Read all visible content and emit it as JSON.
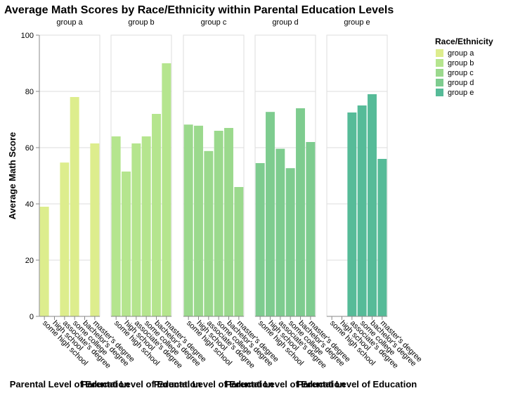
{
  "chart_data": {
    "type": "bar",
    "title": "Average Math Scores by Race/Ethnicity within Parental Education Levels",
    "ylabel": "Average Math Score",
    "xlabel": "Parental Level of Education",
    "ylim": [
      0,
      100
    ],
    "yticks": [
      0,
      20,
      40,
      60,
      80,
      100
    ],
    "grid": true,
    "categories": [
      "some high school",
      "high school",
      "associate's degree",
      "some college",
      "bachelor's degree",
      "master's degree"
    ],
    "facets": [
      {
        "name": "group a",
        "values": [
          39,
          null,
          54.7,
          78,
          null,
          61.5
        ]
      },
      {
        "name": "group b",
        "values": [
          64,
          51.5,
          61.5,
          64,
          72,
          90
        ]
      },
      {
        "name": "group c",
        "values": [
          68.2,
          67.8,
          58.8,
          66,
          67,
          46
        ]
      },
      {
        "name": "group d",
        "values": [
          54.5,
          72.7,
          59.6,
          52.7,
          74,
          62
        ]
      },
      {
        "name": "group e",
        "values": [
          null,
          null,
          72.5,
          75,
          79,
          56
        ]
      }
    ],
    "legend": {
      "title": "Race/Ethnicity",
      "placement": "top-right",
      "entries": [
        "group a",
        "group b",
        "group c",
        "group d",
        "group e"
      ]
    },
    "colors": [
      "#dded8d",
      "#b5e58e",
      "#9bd98d",
      "#7ecc8f",
      "#56bb98"
    ]
  }
}
